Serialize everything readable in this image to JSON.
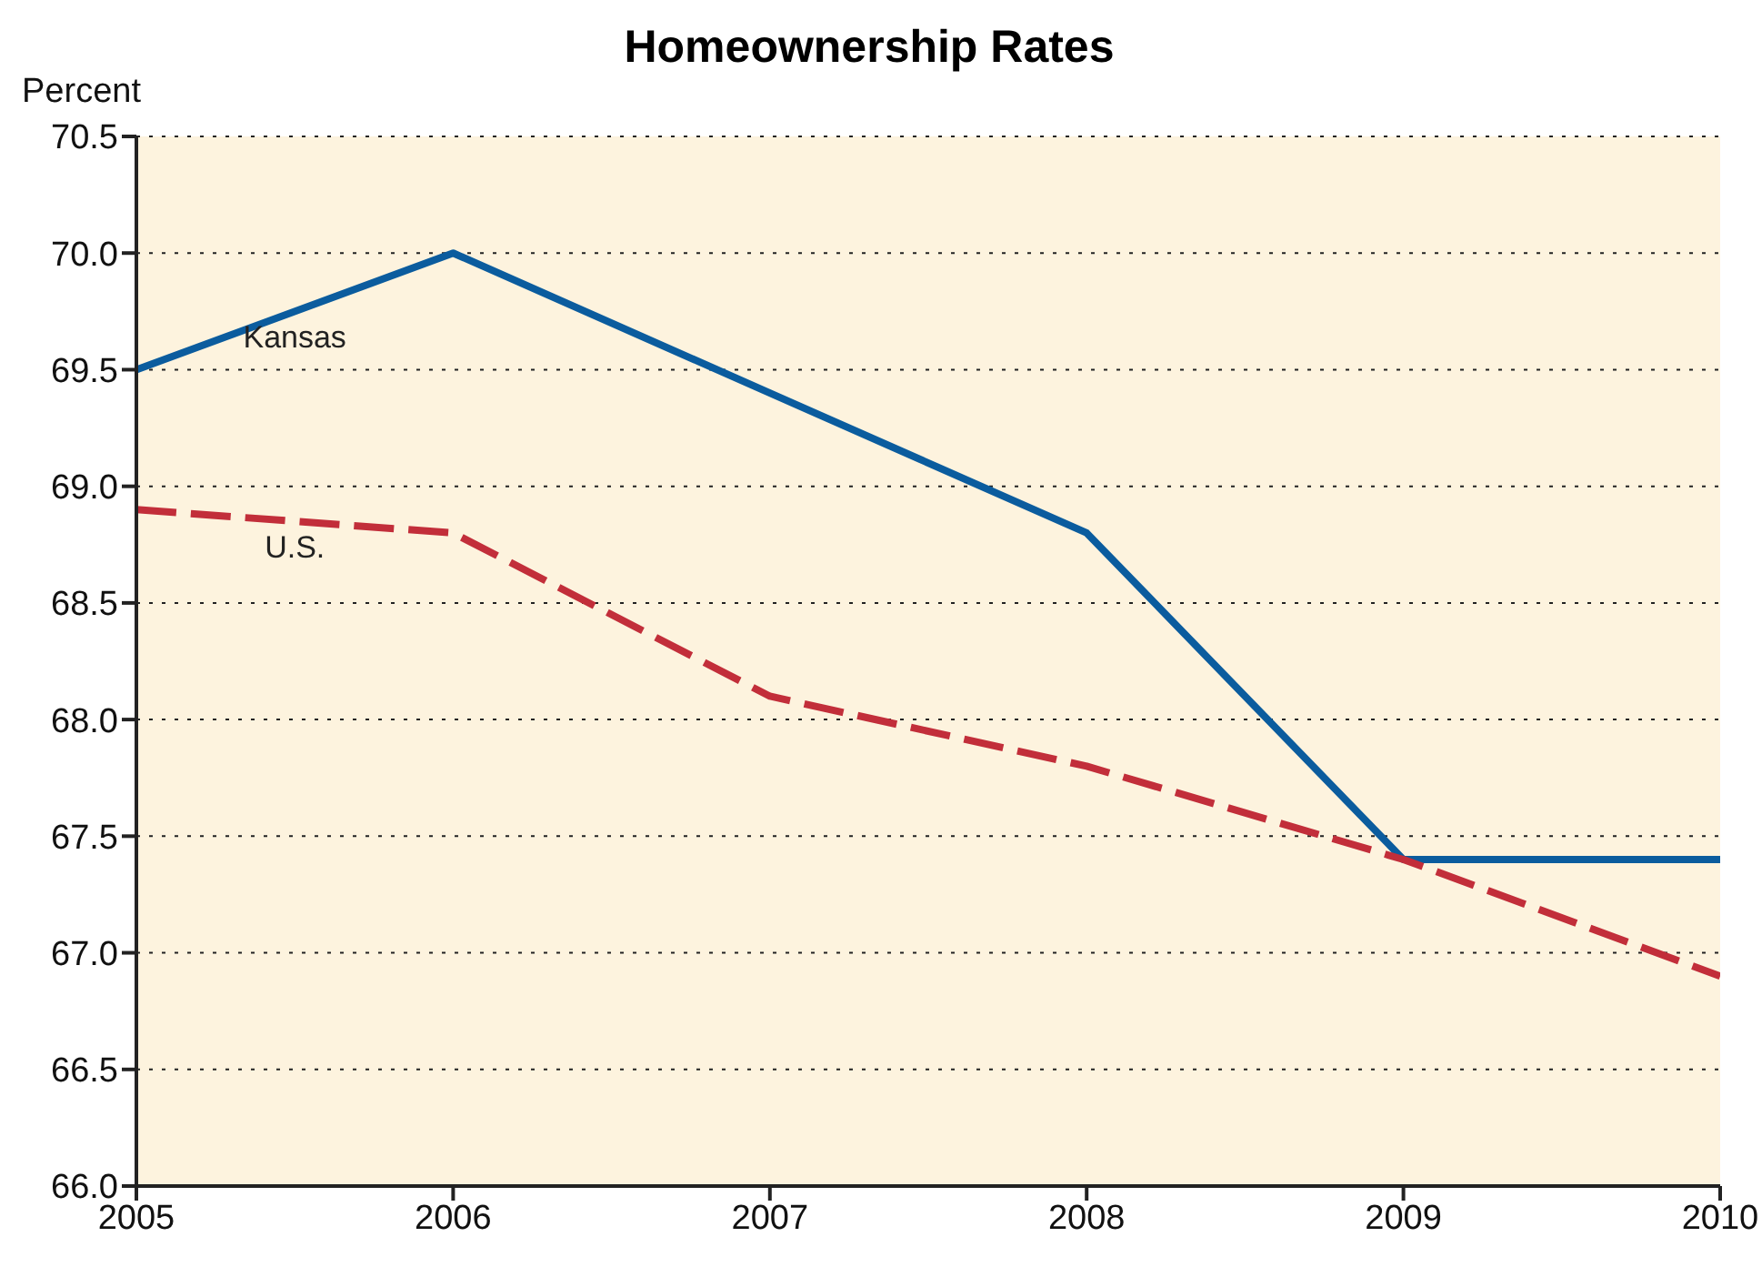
{
  "chart_data": {
    "type": "line",
    "title": "Homeownership Rates",
    "ylabel": "Percent",
    "x": [
      2005,
      2006,
      2007,
      2008,
      2009,
      2010
    ],
    "series": [
      {
        "name": "Kansas",
        "color": "#0b5c9e",
        "values": [
          69.5,
          70.0,
          69.4,
          68.8,
          67.4,
          67.4
        ],
        "line_style": "solid"
      },
      {
        "name": "U.S.",
        "color": "#c22e3a",
        "values": [
          68.9,
          68.8,
          68.1,
          67.8,
          67.4,
          66.9
        ],
        "line_style": "dashed"
      }
    ],
    "xlim": [
      2005,
      2010
    ],
    "xticks": [
      2005,
      2006,
      2007,
      2008,
      2009,
      2010
    ],
    "ylim": [
      66,
      70.5
    ],
    "yticks": [
      {
        "value": 66,
        "label": "66.0"
      },
      66.5,
      {
        "value": 67,
        "label": "67.0"
      },
      67.5,
      {
        "value": 68,
        "label": "68.0"
      },
      68.5,
      {
        "value": 69,
        "label": "69.0"
      },
      69.5,
      {
        "value": 70,
        "label": "70.0"
      },
      70.5
    ],
    "grid": "y",
    "legend": false,
    "marker": "none"
  }
}
